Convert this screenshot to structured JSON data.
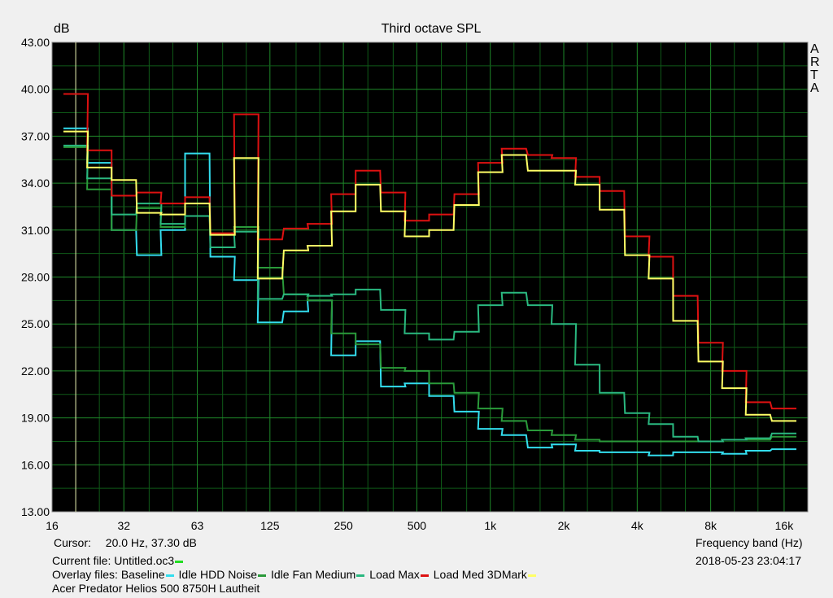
{
  "chart_data": {
    "type": "line",
    "title": "Third octave SPL",
    "ylabel": "dB",
    "xlabel": "Frequency band (Hz)",
    "ylim": [
      13,
      43
    ],
    "yticks": [
      "13.00",
      "16.00",
      "19.00",
      "22.00",
      "25.00",
      "28.00",
      "31.00",
      "34.00",
      "37.00",
      "40.00",
      "43.00"
    ],
    "xticks": [
      "16",
      "32",
      "63",
      "125",
      "250",
      "500",
      "1k",
      "2k",
      "4k",
      "8k",
      "16k"
    ],
    "grid": true,
    "side_label": [
      "A",
      "R",
      "T",
      "A"
    ],
    "x": [
      20,
      25,
      31.5,
      40,
      50,
      63,
      80,
      100,
      125,
      160,
      200,
      250,
      315,
      400,
      500,
      630,
      800,
      1000,
      1250,
      1600,
      2000,
      2500,
      3150,
      4000,
      5000,
      6300,
      8000,
      10000,
      12500,
      16000
    ],
    "series": [
      {
        "name": "Baseline",
        "color": "#33ddee",
        "values": [
          37.5,
          35.3,
          31.0,
          29.4,
          31.0,
          35.9,
          29.3,
          27.8,
          25.1,
          25.8,
          26.5,
          23.0,
          23.9,
          21.0,
          21.2,
          20.4,
          19.4,
          18.3,
          17.9,
          17.1,
          17.3,
          16.9,
          16.8,
          16.8,
          16.6,
          16.8,
          16.8,
          16.7,
          16.9,
          17.0
        ]
      },
      {
        "name": "Idle HDD Noise",
        "color": "#2a9a3a",
        "values": [
          36.3,
          33.6,
          31.0,
          32.4,
          31.2,
          31.9,
          30.7,
          31.2,
          28.6,
          26.9,
          26.5,
          24.4,
          23.7,
          22.2,
          22.0,
          21.2,
          20.6,
          19.6,
          18.8,
          18.2,
          17.9,
          17.6,
          17.5,
          17.5,
          17.5,
          17.5,
          17.5,
          17.6,
          17.6,
          17.8
        ]
      },
      {
        "name": "Idle Fan Medium",
        "color": "#2ab880",
        "values": [
          36.4,
          34.3,
          32.0,
          32.7,
          31.4,
          31.9,
          29.9,
          30.9,
          26.6,
          26.9,
          26.8,
          26.9,
          27.2,
          25.9,
          24.4,
          24.0,
          24.5,
          26.2,
          27.0,
          26.2,
          25.0,
          22.4,
          20.6,
          19.3,
          18.6,
          17.8,
          17.5,
          17.6,
          17.7,
          18.0
        ]
      },
      {
        "name": "Load Max",
        "color": "#dd1111",
        "values": [
          39.7,
          36.1,
          33.2,
          33.4,
          32.7,
          33.1,
          30.8,
          38.4,
          30.4,
          31.1,
          31.4,
          33.3,
          34.8,
          33.4,
          31.6,
          32.0,
          33.3,
          35.3,
          36.2,
          35.8,
          35.6,
          34.4,
          33.5,
          30.6,
          29.3,
          26.8,
          23.8,
          22.0,
          20.0,
          19.6
        ]
      },
      {
        "name": "Load Med 3DMark",
        "color": "#ffff66",
        "values": [
          37.3,
          35.0,
          34.2,
          32.1,
          32.0,
          32.7,
          30.7,
          35.6,
          27.9,
          29.7,
          30.0,
          32.2,
          33.9,
          32.2,
          30.6,
          31.0,
          32.6,
          34.7,
          35.8,
          34.8,
          34.8,
          33.9,
          32.3,
          29.4,
          27.9,
          25.2,
          22.6,
          20.9,
          19.2,
          18.8
        ]
      }
    ]
  },
  "cursor": {
    "label": "Cursor:",
    "value": "20.0 Hz, 37.30 dB",
    "hz": 20
  },
  "footer": {
    "current_file": "Current file: Untitled.oc3",
    "current_color": "#22dd22",
    "overlay_label": "Overlay files:",
    "timestamp": "2018-05-23  23:04:17",
    "caption": "Acer Predator Helios 500 8750H Lautheit"
  }
}
